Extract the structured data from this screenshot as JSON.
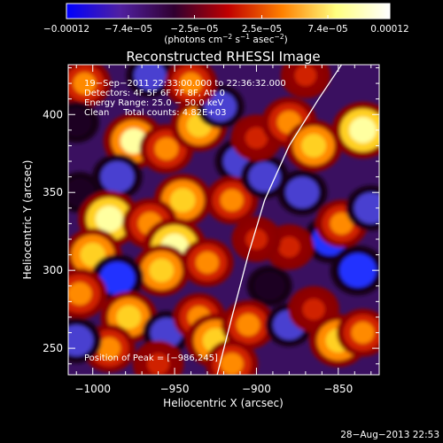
{
  "chart_data": {
    "type": "heatmap",
    "title": "Reconstructed RHESSI Image",
    "xlabel": "Heliocentric X (arcsec)",
    "ylabel": "Heliocentric Y (arcsec)",
    "xlim": [
      -1015,
      -825
    ],
    "ylim": [
      233,
      432
    ],
    "x_ticks": [
      -1000,
      -950,
      -900,
      -850
    ],
    "y_ticks": [
      250,
      300,
      350,
      400
    ],
    "x_tick_labels": [
      "−1000",
      "−950",
      "−900",
      "−850"
    ],
    "y_tick_labels": [
      "250",
      "300",
      "350",
      "400"
    ],
    "colorbar": {
      "range": [
        -0.00012,
        0.00012
      ],
      "ticks": [
        -0.00012,
        -7.4e-05,
        -2.5e-05,
        2.5e-05,
        7.4e-05,
        0.00012
      ],
      "tick_labels": [
        "−0.00012",
        "−7.4e−05",
        "−2.5e−05",
        "2.5e−05",
        "7.4e−05",
        "0.00012"
      ],
      "units_text": "(photons cm",
      "units_sup1": "−2",
      "units_mid": " s",
      "units_sup2": "−1",
      "units_end": " asec",
      "units_sup3": "−2",
      "units_close": ")",
      "colormap": [
        "#0000ff",
        "#5020a0",
        "#300030",
        "#c00000",
        "#ff8000",
        "#ffff80",
        "#ffffff"
      ]
    },
    "info_lines": [
      "19−Sep−2011 22:33:00.000 to 22:36:32.000",
      "Detectors: 4F 5F 6F 7F 8F, Att 0",
      "Energy Range: 25.0 − 50.0 keV",
      "Clean     Total counts: 4.82E+03"
    ],
    "peak_text": "Position of Peak = [−986,245]",
    "limb_curve": [
      [
        -924,
        233
      ],
      [
        -915,
        270
      ],
      [
        -905,
        310
      ],
      [
        -895,
        345
      ],
      [
        -880,
        380
      ],
      [
        -862,
        410
      ],
      [
        -848,
        432
      ]
    ],
    "blobs": [
      {
        "x": -975,
        "y": 383,
        "v": 0.9
      },
      {
        "x": -955,
        "y": 378,
        "v": 0.65
      },
      {
        "x": -985,
        "y": 360,
        "v": -0.7
      },
      {
        "x": -1008,
        "y": 350,
        "v": -0.5
      },
      {
        "x": -990,
        "y": 333,
        "v": 0.95
      },
      {
        "x": -945,
        "y": 345,
        "v": 0.8
      },
      {
        "x": -965,
        "y": 330,
        "v": 0.7
      },
      {
        "x": -950,
        "y": 315,
        "v": 1.0
      },
      {
        "x": -958,
        "y": 300,
        "v": 0.75
      },
      {
        "x": -1000,
        "y": 310,
        "v": 0.8
      },
      {
        "x": -985,
        "y": 295,
        "v": -0.8
      },
      {
        "x": -1008,
        "y": 285,
        "v": 0.7
      },
      {
        "x": -978,
        "y": 270,
        "v": 0.75
      },
      {
        "x": -955,
        "y": 260,
        "v": -0.6
      },
      {
        "x": -930,
        "y": 305,
        "v": 0.6
      },
      {
        "x": -935,
        "y": 270,
        "v": 0.6
      },
      {
        "x": -925,
        "y": 255,
        "v": 0.85
      },
      {
        "x": -990,
        "y": 250,
        "v": 0.6
      },
      {
        "x": -1010,
        "y": 255,
        "v": -0.7
      },
      {
        "x": -935,
        "y": 393,
        "v": 0.75
      },
      {
        "x": -922,
        "y": 405,
        "v": -0.6
      },
      {
        "x": -910,
        "y": 370,
        "v": -0.7
      },
      {
        "x": -915,
        "y": 345,
        "v": 0.6
      },
      {
        "x": -895,
        "y": 360,
        "v": -0.6
      },
      {
        "x": -900,
        "y": 385,
        "v": 0.55
      },
      {
        "x": -880,
        "y": 395,
        "v": 0.7
      },
      {
        "x": -865,
        "y": 380,
        "v": 0.75
      },
      {
        "x": -872,
        "y": 350,
        "v": -0.7
      },
      {
        "x": -855,
        "y": 320,
        "v": -0.8
      },
      {
        "x": -838,
        "y": 300,
        "v": -0.9
      },
      {
        "x": -848,
        "y": 330,
        "v": 0.6
      },
      {
        "x": -835,
        "y": 390,
        "v": 0.95
      },
      {
        "x": -830,
        "y": 340,
        "v": -0.7
      },
      {
        "x": -880,
        "y": 315,
        "v": 0.5
      },
      {
        "x": -892,
        "y": 290,
        "v": -0.5
      },
      {
        "x": -905,
        "y": 265,
        "v": 0.65
      },
      {
        "x": -880,
        "y": 265,
        "v": -0.6
      },
      {
        "x": -865,
        "y": 275,
        "v": 0.55
      },
      {
        "x": -850,
        "y": 255,
        "v": 0.8
      },
      {
        "x": -835,
        "y": 260,
        "v": 0.6
      },
      {
        "x": -915,
        "y": 240,
        "v": 0.6
      },
      {
        "x": -960,
        "y": 240,
        "v": 0.55
      },
      {
        "x": -1005,
        "y": 420,
        "v": 0.6
      },
      {
        "x": -965,
        "y": 425,
        "v": -0.6
      },
      {
        "x": -940,
        "y": 420,
        "v": 0.6
      },
      {
        "x": -1010,
        "y": 395,
        "v": -0.5
      },
      {
        "x": -870,
        "y": 425,
        "v": 0.5
      },
      {
        "x": -900,
        "y": 320,
        "v": 0.5
      }
    ]
  },
  "footer": {
    "timestamp": "28−Aug−2013 22:53"
  }
}
